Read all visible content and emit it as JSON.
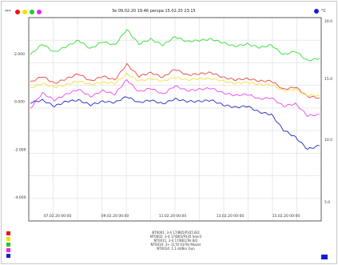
{
  "toolbar": {
    "left_label": "***",
    "header": "3e 09.02.20 19:46 perspa 15.02.20 23:15",
    "unit_label": "°C",
    "dots": [
      {
        "name": "red-dot",
        "color": "#ee1111"
      },
      {
        "name": "yellow-dot",
        "color": "#f2e200"
      },
      {
        "name": "green-dot",
        "color": "#22cc22"
      },
      {
        "name": "magenta-dot",
        "color": "#ee22ee"
      }
    ],
    "unit_dot_color": "#1020d0"
  },
  "legend_swatches": [
    "#ee1111",
    "#f2e200",
    "#22cc22",
    "#ee22ee",
    "#1020d0"
  ],
  "sensors": [
    "NT0001: 3-4 17/B65/P335 B/2",
    "NT0002: 3-4 17/B65/P335 Sen/3",
    "NT0011: 3-4 17/B61/Tel B/2",
    "NT0010: 3+ 1170 01/Tel Mixzer",
    "NT0014: 1.1 ot/Bor Gun"
  ],
  "chart_data": {
    "type": "line",
    "x_ticks": [
      "07.02.20 00:00",
      "09.02.20 00:00",
      "11.02.20 00:00",
      "13.02.20 00:00",
      "15.02.20 00:00"
    ],
    "y_left_ticks": [
      "2.000",
      "0.000",
      "-2.000",
      "-4.000"
    ],
    "y_right_ticks": [
      "20.0",
      "15.0",
      "10.0",
      "5.0"
    ],
    "grid": true,
    "series": [
      {
        "color": "#33dd33",
        "values": [
          1.95,
          2.4,
          2.05,
          2.3,
          2.55,
          2.2,
          2.5,
          2.35,
          3.0,
          2.4,
          2.6,
          2.35,
          2.7,
          2.5,
          2.55,
          2.6,
          2.45,
          2.3,
          2.4,
          2.25,
          2.35,
          1.95,
          2.1,
          1.7,
          1.8
        ]
      },
      {
        "color": "#ee4444",
        "values": [
          0.8,
          1.05,
          0.75,
          0.95,
          1.15,
          0.85,
          1.05,
          0.9,
          1.55,
          1.05,
          1.2,
          1.0,
          1.35,
          1.1,
          1.15,
          1.2,
          1.0,
          0.9,
          0.95,
          0.85,
          0.85,
          0.5,
          0.6,
          0.2,
          0.15
        ]
      },
      {
        "color": "#f2e040",
        "values": [
          0.55,
          0.75,
          0.6,
          0.7,
          0.85,
          0.7,
          0.8,
          0.75,
          1.15,
          0.85,
          0.95,
          0.85,
          1.0,
          0.9,
          0.95,
          0.95,
          0.85,
          0.75,
          0.8,
          0.7,
          0.7,
          0.45,
          0.5,
          0.25,
          0.25
        ]
      },
      {
        "color": "#ee44ee",
        "values": [
          -0.3,
          0.35,
          0.05,
          0.3,
          0.5,
          0.2,
          0.45,
          0.3,
          0.9,
          0.4,
          0.55,
          0.3,
          0.65,
          0.45,
          0.5,
          0.55,
          0.35,
          0.25,
          0.3,
          0.1,
          0.15,
          -0.2,
          -0.1,
          -0.6,
          -0.55
        ]
      },
      {
        "color": "#2028c0",
        "values": [
          -0.05,
          0.05,
          -0.2,
          0.0,
          0.05,
          -0.15,
          0.0,
          -0.05,
          0.2,
          -0.05,
          0.05,
          -0.1,
          0.1,
          0.0,
          0.0,
          0.05,
          -0.15,
          -0.25,
          -0.2,
          -0.45,
          -0.55,
          -1.2,
          -1.5,
          -2.0,
          -1.85
        ]
      }
    ]
  }
}
